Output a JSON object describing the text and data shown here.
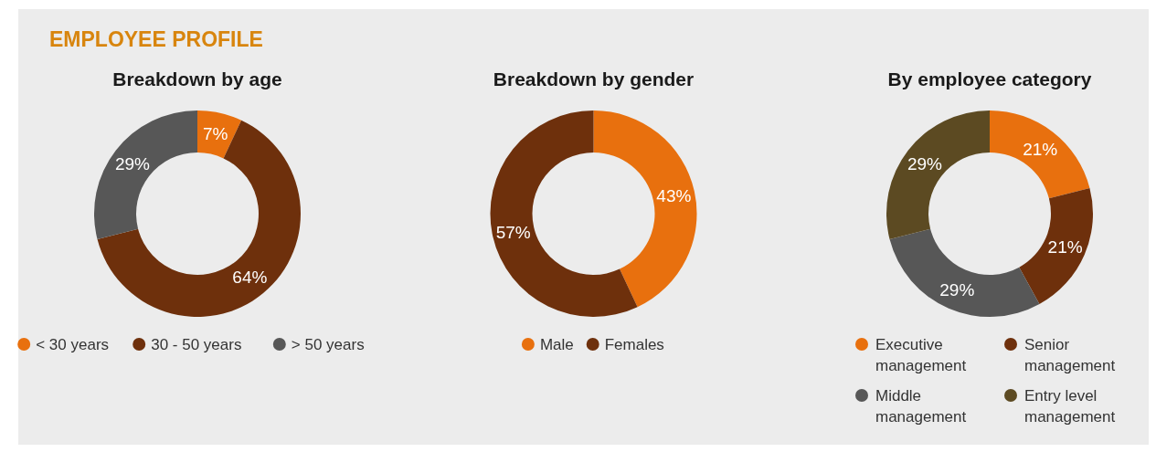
{
  "chart_data": [
    {
      "type": "other",
      "title": "EMPLOYEE PROFILE"
    },
    {
      "type": "donut",
      "title": "Breakdown by age",
      "categories": [
        "< 30 years",
        "30 - 50 years",
        "> 50 years"
      ],
      "values": [
        7,
        64,
        29
      ],
      "colors": [
        "#e8700e",
        "#6e300c",
        "#575757"
      ],
      "value_labels": [
        "7%",
        "64%",
        "29%"
      ],
      "legend": "bottom"
    },
    {
      "type": "donut",
      "title": "Breakdown by gender",
      "categories": [
        "Male",
        "Females"
      ],
      "values": [
        43,
        57
      ],
      "colors": [
        "#e8700e",
        "#6e300c"
      ],
      "value_labels": [
        "43%",
        "57%"
      ],
      "legend": "bottom"
    },
    {
      "type": "donut",
      "title": "By employee category",
      "categories": [
        "Executive management",
        "Senior management",
        "Middle management",
        "Entry level management"
      ],
      "values": [
        21,
        21,
        29,
        29
      ],
      "colors": [
        "#e8700e",
        "#6e300c",
        "#575757",
        "#5c4a22"
      ],
      "value_labels": [
        "21%",
        "21%",
        "29%",
        "29%"
      ],
      "legend": "bottom"
    }
  ]
}
